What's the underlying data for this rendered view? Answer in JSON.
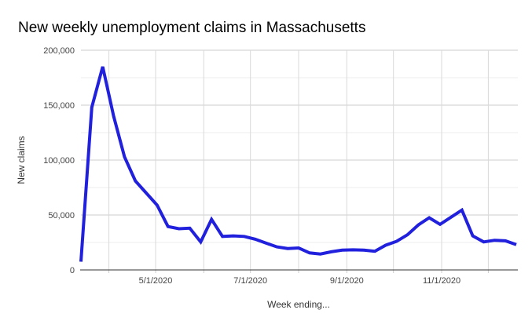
{
  "chart_data": {
    "type": "line",
    "title": "New weekly unemployment claims in Massachusetts",
    "xlabel": "Week ending...",
    "ylabel": "New claims",
    "legend_position": "none",
    "line_color": "#2020dd",
    "line_width": 4,
    "background_color": "#ffffff",
    "grid": {
      "h_major_color": "#cccccc",
      "h_minor_color": "#ededed",
      "v_color": "#d9d9d9",
      "axis_color": "#333333",
      "tick_color": "#cccccc"
    },
    "y_axis": {
      "min": 0,
      "max": 200000,
      "ticks": [
        {
          "value": 0,
          "label": "0"
        },
        {
          "value": 50000,
          "label": "50,000"
        },
        {
          "value": 100000,
          "label": "100,000"
        },
        {
          "value": 150000,
          "label": "150,000"
        },
        {
          "value": 200000,
          "label": "200,000"
        }
      ],
      "minor_ticks": [
        25000,
        75000,
        125000,
        175000
      ]
    },
    "x_axis": {
      "months": [
        {
          "date": "4/1/2020",
          "label": ""
        },
        {
          "date": "5/1/2020",
          "label": "5/1/2020"
        },
        {
          "date": "6/1/2020",
          "label": ""
        },
        {
          "date": "7/1/2020",
          "label": "7/1/2020"
        },
        {
          "date": "8/1/2020",
          "label": ""
        },
        {
          "date": "9/1/2020",
          "label": "9/1/2020"
        },
        {
          "date": "10/1/2020",
          "label": ""
        },
        {
          "date": "11/1/2020",
          "label": "11/1/2020"
        },
        {
          "date": "12/1/2020",
          "label": ""
        }
      ]
    },
    "points": [
      {
        "week": "3/14/2020",
        "claims": 7500
      },
      {
        "week": "3/21/2020",
        "claims": 148000
      },
      {
        "week": "3/28/2020",
        "claims": 185000
      },
      {
        "week": "4/4/2020",
        "claims": 140000
      },
      {
        "week": "4/11/2020",
        "claims": 103000
      },
      {
        "week": "4/18/2020",
        "claims": 81000
      },
      {
        "week": "4/25/2020",
        "claims": 70000
      },
      {
        "week": "5/2/2020",
        "claims": 59000
      },
      {
        "week": "5/9/2020",
        "claims": 39500
      },
      {
        "week": "5/16/2020",
        "claims": 37500
      },
      {
        "week": "5/23/2020",
        "claims": 38000
      },
      {
        "week": "5/30/2020",
        "claims": 25500
      },
      {
        "week": "6/6/2020",
        "claims": 46000
      },
      {
        "week": "6/13/2020",
        "claims": 30500
      },
      {
        "week": "6/20/2020",
        "claims": 31000
      },
      {
        "week": "6/27/2020",
        "claims": 30500
      },
      {
        "week": "7/4/2020",
        "claims": 28000
      },
      {
        "week": "7/11/2020",
        "claims": 24500
      },
      {
        "week": "7/18/2020",
        "claims": 21000
      },
      {
        "week": "7/25/2020",
        "claims": 19500
      },
      {
        "week": "8/1/2020",
        "claims": 20000
      },
      {
        "week": "8/8/2020",
        "claims": 15500
      },
      {
        "week": "8/15/2020",
        "claims": 14500
      },
      {
        "week": "8/22/2020",
        "claims": 16500
      },
      {
        "week": "8/29/2020",
        "claims": 18000
      },
      {
        "week": "9/5/2020",
        "claims": 18300
      },
      {
        "week": "9/12/2020",
        "claims": 18000
      },
      {
        "week": "9/19/2020",
        "claims": 17000
      },
      {
        "week": "9/26/2020",
        "claims": 22500
      },
      {
        "week": "10/3/2020",
        "claims": 26000
      },
      {
        "week": "10/10/2020",
        "claims": 32000
      },
      {
        "week": "10/17/2020",
        "claims": 41000
      },
      {
        "week": "10/24/2020",
        "claims": 47500
      },
      {
        "week": "10/31/2020",
        "claims": 41500
      },
      {
        "week": "11/7/2020",
        "claims": 48000
      },
      {
        "week": "11/14/2020",
        "claims": 54500
      },
      {
        "week": "11/21/2020",
        "claims": 31000
      },
      {
        "week": "11/28/2020",
        "claims": 25500
      },
      {
        "week": "12/5/2020",
        "claims": 27000
      },
      {
        "week": "12/12/2020",
        "claims": 26500
      },
      {
        "week": "12/19/2020",
        "claims": 23000
      }
    ]
  }
}
